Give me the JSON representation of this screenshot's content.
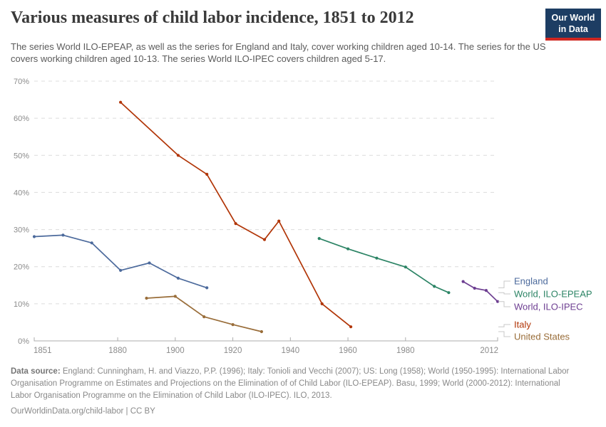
{
  "header": {
    "title": "Various measures of child labor incidence, 1851 to 2012",
    "subtitle": "The series World ILO-EPEAP, as well as the series for England and Italy, cover working children aged 10-14. The series for the US covers working children aged 10-13. The series World ILO-IPEC covers children aged 5-17.",
    "logo": {
      "line1": "Our World",
      "line2": "in Data",
      "bg_color": "#1d3d63",
      "accent_color": "#cf2721"
    }
  },
  "chart_data": {
    "type": "line",
    "title": "Various measures of child labor incidence, 1851 to 2012",
    "xlabel": "",
    "ylabel": "",
    "xlim": [
      1851,
      2012
    ],
    "ylim": [
      0,
      70
    ],
    "x_ticks": [
      1851,
      1880,
      1900,
      1920,
      1940,
      1960,
      1980,
      2012
    ],
    "y_ticks": [
      0,
      10,
      20,
      30,
      40,
      50,
      60,
      70
    ],
    "y_tick_suffix": "%",
    "grid": "horizontal-dashed",
    "legend_position": "right",
    "series": [
      {
        "name": "England",
        "color": "#4C6A9C",
        "points": [
          [
            1851,
            28.1
          ],
          [
            1861,
            28.5
          ],
          [
            1871,
            26.4
          ],
          [
            1881,
            19.0
          ],
          [
            1891,
            21.0
          ],
          [
            1901,
            16.9
          ],
          [
            1911,
            14.3
          ]
        ]
      },
      {
        "name": "World, ILO-EPEAP",
        "color": "#2C8465",
        "points": [
          [
            1950,
            27.6
          ],
          [
            1960,
            24.8
          ],
          [
            1970,
            22.3
          ],
          [
            1980,
            19.9
          ],
          [
            1990,
            14.7
          ],
          [
            1995,
            13.0
          ]
        ]
      },
      {
        "name": "World, ILO-IPEC",
        "color": "#6D3E91",
        "points": [
          [
            2000,
            16.0
          ],
          [
            2004,
            14.2
          ],
          [
            2008,
            13.6
          ],
          [
            2012,
            10.6
          ]
        ]
      },
      {
        "name": "Italy",
        "color": "#B13507",
        "points": [
          [
            1881,
            64.3
          ],
          [
            1901,
            50.0
          ],
          [
            1911,
            44.9
          ],
          [
            1921,
            31.6
          ],
          [
            1931,
            27.3
          ],
          [
            1936,
            32.3
          ],
          [
            1951,
            10.0
          ],
          [
            1961,
            3.8
          ]
        ]
      },
      {
        "name": "United States",
        "color": "#996D39",
        "points": [
          [
            1890,
            11.5
          ],
          [
            1900,
            12.0
          ],
          [
            1910,
            6.5
          ],
          [
            1920,
            4.4
          ],
          [
            1930,
            2.5
          ]
        ]
      }
    ]
  },
  "footer": {
    "source_label": "Data source:",
    "source_text": " England: Cunningham, H. and Viazzo, P.P. (1996); Italy: Tonioli and Vecchi (2007); US: Long (1958); World (1950-1995): International Labor Organisation Programme on Estimates and Projections on the Elimination of of Child Labor (ILO-EPEAP). Basu, 1999; World (2000-2012): International Labor Organisation Programme on the Elimination of Child Labor (ILO-IPEC). ILO, 2013.",
    "license_link": "OurWorldinData.org/child-labor",
    "license_suffix": " | CC BY"
  }
}
